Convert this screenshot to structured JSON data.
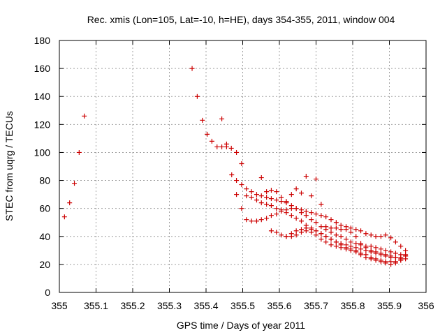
{
  "chart_data": {
    "type": "scatter",
    "title": "Rec. xmis (Lon=105, Lat=-10, h=HE), days 354-355, 2011, window 004",
    "xlabel": "GPS time / Days of year 2011",
    "ylabel": "STEC from uqrg / TECUs",
    "xlim": [
      355,
      356
    ],
    "ylim": [
      0,
      180
    ],
    "xticks": [
      "355",
      "355.1",
      "355.2",
      "355.3",
      "355.4",
      "355.5",
      "355.6",
      "355.7",
      "355.8",
      "355.9",
      "356"
    ],
    "yticks": [
      "0",
      "20",
      "40",
      "60",
      "80",
      "100",
      "120",
      "140",
      "160",
      "180"
    ],
    "grid": true,
    "marker": "+",
    "color": "#cc0000",
    "series": [
      {
        "x": [
          355.014,
          355.028,
          355.041,
          355.054,
          355.068,
          355.362,
          355.376,
          355.39,
          355.403,
          355.416,
          355.43,
          355.443,
          355.456,
          355.469,
          355.483,
          355.497,
          355.443,
          355.456,
          355.47,
          355.483,
          355.497,
          355.51,
          355.524,
          355.538,
          355.551,
          355.565,
          355.578,
          355.592,
          355.605,
          355.619,
          355.633,
          355.646,
          355.66,
          355.673,
          355.687,
          355.7,
          355.714,
          355.727,
          355.741,
          355.755,
          355.768,
          355.782,
          355.795,
          355.809,
          355.822,
          355.836,
          355.85,
          355.863,
          355.877,
          355.89,
          355.904,
          355.917,
          355.931,
          355.944,
          355.483,
          355.497,
          355.51,
          355.524,
          355.538,
          355.551,
          355.565,
          355.578,
          355.592,
          355.605,
          355.619,
          355.633,
          355.646,
          355.66,
          355.673,
          355.687,
          355.7,
          355.714,
          355.727,
          355.741,
          355.755,
          355.768,
          355.782,
          355.795,
          355.809,
          355.822,
          355.836,
          355.85,
          355.863,
          355.877,
          355.89,
          355.904,
          355.917,
          355.931,
          355.944,
          355.51,
          355.524,
          355.538,
          355.551,
          355.565,
          355.578,
          355.592,
          355.605,
          355.619,
          355.633,
          355.646,
          355.66,
          355.673,
          355.687,
          355.7,
          355.714,
          355.727,
          355.741,
          355.755,
          355.768,
          355.782,
          355.795,
          355.809,
          355.822,
          355.836,
          355.85,
          355.863,
          355.877,
          355.89,
          355.904,
          355.917,
          355.931,
          355.944,
          355.551,
          355.565,
          355.578,
          355.592,
          355.605,
          355.619,
          355.633,
          355.646,
          355.66,
          355.673,
          355.687,
          355.7,
          355.714,
          355.727,
          355.741,
          355.755,
          355.768,
          355.782,
          355.795,
          355.809,
          355.822,
          355.836,
          355.85,
          355.863,
          355.877,
          355.89,
          355.904,
          355.917,
          355.931,
          355.944,
          355.578,
          355.592,
          355.605,
          355.619,
          355.633,
          355.646,
          355.66,
          355.673,
          355.687,
          355.7,
          355.714,
          355.727,
          355.741,
          355.755,
          355.768,
          355.782,
          355.795,
          355.809,
          355.822,
          355.836,
          355.85,
          355.863,
          355.877,
          355.89,
          355.904,
          355.917,
          355.931,
          355.944,
          355.619,
          355.633,
          355.646,
          355.66,
          355.673,
          355.687,
          355.7,
          355.714,
          355.727,
          355.741,
          355.755,
          355.768,
          355.782,
          355.795,
          355.809,
          355.822,
          355.836,
          355.85,
          355.863,
          355.877,
          355.89,
          355.904,
          355.917,
          355.931,
          355.944
        ],
        "y": [
          54,
          64,
          78,
          100,
          126,
          160,
          140,
          123,
          113,
          108,
          104,
          104,
          104,
          103,
          100,
          92,
          124,
          106,
          84,
          70,
          60,
          52,
          51,
          51,
          52,
          53,
          55,
          56,
          58,
          59,
          60,
          60,
          59,
          58,
          57,
          56,
          55,
          54,
          52,
          50,
          48,
          47,
          46,
          45,
          44,
          42,
          41,
          40,
          40,
          41,
          39,
          36,
          33,
          30,
          80,
          77,
          74,
          72,
          70,
          69,
          68,
          67,
          66,
          65,
          64,
          62,
          60,
          57,
          55,
          52,
          50,
          47,
          45,
          43,
          41,
          40,
          38,
          36,
          35,
          34,
          33,
          33,
          32,
          31,
          30,
          29,
          28,
          27,
          26,
          69,
          68,
          66,
          64,
          63,
          62,
          60,
          59,
          57,
          55,
          53,
          51,
          48,
          46,
          44,
          42,
          40,
          38,
          36,
          35,
          34,
          33,
          32,
          31,
          30,
          29,
          28,
          27,
          26,
          25,
          25,
          24,
          24,
          82,
          72,
          73,
          72,
          68,
          65,
          70,
          74,
          71,
          83,
          69,
          81,
          63,
          47,
          46,
          46,
          45,
          45,
          43,
          40,
          35,
          32,
          30,
          29,
          28,
          27,
          26,
          25,
          25,
          26,
          44,
          43,
          41,
          40,
          42,
          44,
          45,
          46,
          45,
          44,
          42,
          40,
          38,
          36,
          34,
          32,
          31,
          30,
          28,
          27,
          25,
          24,
          23,
          22,
          22,
          22,
          23,
          26,
          40,
          40,
          41,
          43,
          44,
          43,
          41,
          38,
          36,
          34,
          33,
          32,
          31,
          30,
          29,
          27,
          25,
          24,
          23,
          22,
          21,
          20,
          21,
          23,
          27
        ]
      }
    ]
  }
}
